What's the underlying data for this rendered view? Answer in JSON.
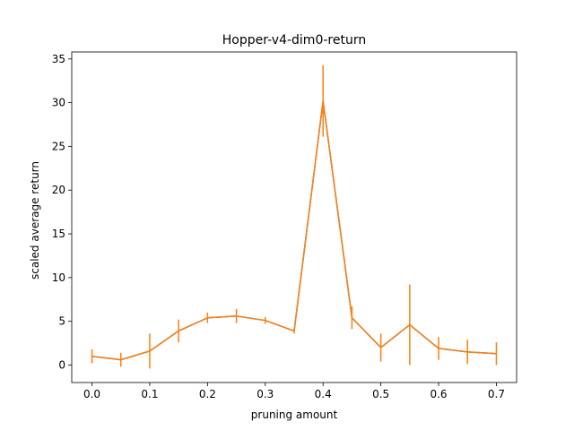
{
  "chart_data": {
    "type": "line",
    "title": "Hopper-v4-dim0-return",
    "xlabel": "pruning amount",
    "ylabel": "scaled average return",
    "xlim": [
      -0.035,
      0.735
    ],
    "ylim": [
      -2.0,
      35.8
    ],
    "xticks": [
      0.0,
      0.1,
      0.2,
      0.3,
      0.4,
      0.5,
      0.6,
      0.7
    ],
    "xtick_labels": [
      "0.0",
      "0.1",
      "0.2",
      "0.3",
      "0.4",
      "0.5",
      "0.6",
      "0.7"
    ],
    "yticks": [
      0,
      5,
      10,
      15,
      20,
      25,
      30,
      35
    ],
    "ytick_labels": [
      "0",
      "5",
      "10",
      "15",
      "20",
      "25",
      "30",
      "35"
    ],
    "grid": false,
    "series": [
      {
        "color": "#ff7f0e",
        "x": [
          0.0,
          0.05,
          0.1,
          0.15,
          0.2,
          0.25,
          0.3,
          0.35,
          0.4,
          0.45,
          0.5,
          0.55,
          0.6,
          0.65,
          0.7
        ],
        "y": [
          1.0,
          0.6,
          1.6,
          3.9,
          5.4,
          5.6,
          5.1,
          3.9,
          30.2,
          5.4,
          2.0,
          4.6,
          1.9,
          1.5,
          1.3
        ],
        "yerr": [
          0.8,
          0.8,
          2.0,
          1.3,
          0.6,
          0.8,
          0.4,
          0.3,
          4.1,
          1.3,
          1.6,
          4.6,
          1.3,
          1.4,
          1.3
        ]
      },
      {
        "color": "#1f77b4",
        "x": [
          0.0,
          0.05,
          0.1,
          0.15,
          0.2,
          0.25,
          0.3,
          0.35,
          0.4,
          0.45,
          0.5,
          0.55,
          0.6,
          0.65,
          0.7
        ],
        "y": [
          1.0,
          0.6,
          1.6,
          3.9,
          5.4,
          5.6,
          5.1,
          3.9,
          30.2,
          5.4,
          2.0,
          4.6,
          1.9,
          1.5,
          1.3
        ]
      }
    ]
  }
}
